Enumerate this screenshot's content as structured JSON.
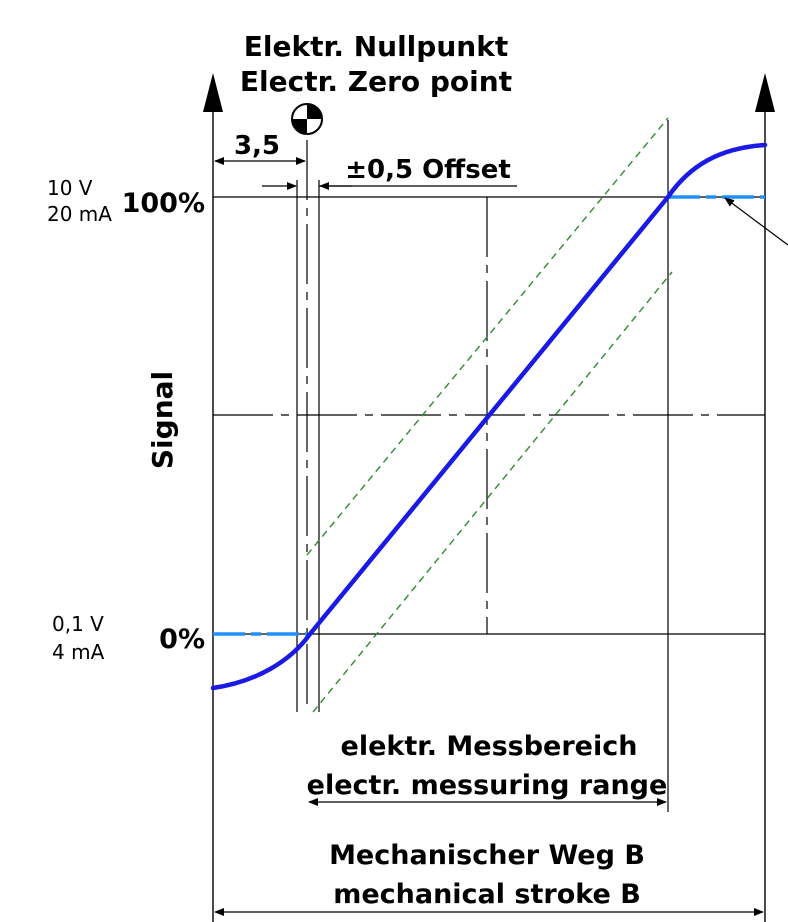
{
  "zero_point": {
    "line1": "Elektr. Nullpunkt",
    "line2": "Electr. Zero point"
  },
  "dimensions": {
    "zero_distance": "3,5",
    "offset": "±0,5 Offset"
  },
  "y_axis": {
    "label": "Signal",
    "top_percent": "100%",
    "bottom_percent": "0%",
    "top_voltage": "10 V",
    "top_current": "20 mA",
    "bottom_voltage": "0,1 V",
    "bottom_current": "4 mA"
  },
  "ranges": {
    "electrical_de": "elektr. Messbereich",
    "electrical_en": "electr. messuring range",
    "mechanical_de": "Mechanischer Weg B",
    "mechanical_en": "mechanical stroke B"
  },
  "colors": {
    "signal_curve": "#1a1ae6",
    "saturation_dash": "#1e90ff",
    "tolerance_band": "#2e8b2e",
    "lines": "#000000"
  }
}
